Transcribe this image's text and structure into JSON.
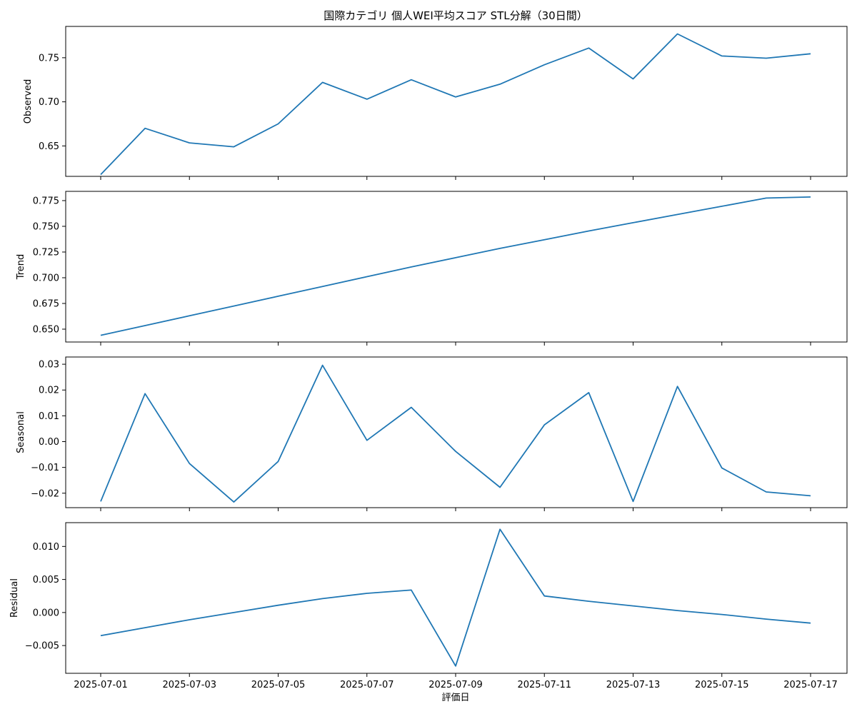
{
  "title": "国際カテゴリ 個人WEI平均スコア STL分解（30日間）",
  "xlabel": "評価日",
  "colors": {
    "line": "#1f77b4",
    "axis": "#000000"
  },
  "chart_data": {
    "type": "line",
    "title": "国際カテゴリ 個人WEI平均スコア STL分解（30日間）",
    "xlabel": "評価日",
    "x": [
      "2025-07-01",
      "2025-07-02",
      "2025-07-03",
      "2025-07-04",
      "2025-07-05",
      "2025-07-06",
      "2025-07-07",
      "2025-07-08",
      "2025-07-09",
      "2025-07-10",
      "2025-07-11",
      "2025-07-12",
      "2025-07-13",
      "2025-07-14",
      "2025-07-15",
      "2025-07-16",
      "2025-07-17"
    ],
    "x_tick_labels": [
      "2025-07-01",
      "2025-07-03",
      "2025-07-05",
      "2025-07-07",
      "2025-07-09",
      "2025-07-11",
      "2025-07-13",
      "2025-07-15",
      "2025-07-17"
    ],
    "grid": false,
    "panels": [
      {
        "ylabel": "Observed",
        "ylim": [
          0.6155,
          0.7855
        ],
        "yticks": [
          0.65,
          0.7,
          0.75
        ],
        "ytick_labels": [
          "0.65",
          "0.70",
          "0.75"
        ],
        "values": [
          0.6175,
          0.67,
          0.6535,
          0.649,
          0.675,
          0.722,
          0.703,
          0.725,
          0.7055,
          0.72,
          0.742,
          0.761,
          0.726,
          0.777,
          0.752,
          0.7495,
          0.7545
        ]
      },
      {
        "ylabel": "Trend",
        "ylim": [
          0.6375,
          0.784
        ],
        "yticks": [
          0.65,
          0.675,
          0.7,
          0.725,
          0.75,
          0.775
        ],
        "ytick_labels": [
          "0.650",
          "0.675",
          "0.700",
          "0.725",
          "0.750",
          "0.775"
        ],
        "values": [
          0.644,
          0.6535,
          0.663,
          0.6725,
          0.682,
          0.6915,
          0.701,
          0.7105,
          0.7195,
          0.7285,
          0.737,
          0.7455,
          0.7535,
          0.7615,
          0.7695,
          0.7775,
          0.7785
        ]
      },
      {
        "ylabel": "Seasonal",
        "ylim": [
          -0.0256,
          0.0328
        ],
        "yticks": [
          -0.02,
          -0.01,
          0.0,
          0.01,
          0.02,
          0.03
        ],
        "ytick_labels": [
          "−0.02",
          "−0.01",
          "0.00",
          "0.01",
          "0.02",
          "0.03"
        ],
        "values": [
          -0.0232,
          0.0186,
          -0.0085,
          -0.0234,
          -0.0077,
          0.0296,
          0.0005,
          0.0133,
          -0.0038,
          -0.0177,
          0.0065,
          0.019,
          -0.0232,
          0.0214,
          -0.0102,
          -0.0195,
          -0.021
        ]
      },
      {
        "ylabel": "Residual",
        "ylim": [
          -0.0092,
          0.0136
        ],
        "yticks": [
          -0.005,
          0.0,
          0.005,
          0.01
        ],
        "ytick_labels": [
          "−0.005",
          "0.000",
          "0.005",
          "0.010"
        ],
        "values": [
          -0.0035,
          -0.0023,
          -0.0011,
          0.0,
          0.0011,
          0.0021,
          0.0029,
          0.0034,
          -0.0081,
          0.0126,
          0.0025,
          0.0017,
          0.001,
          0.0003,
          -0.0003,
          -0.001,
          -0.0016
        ]
      }
    ]
  }
}
